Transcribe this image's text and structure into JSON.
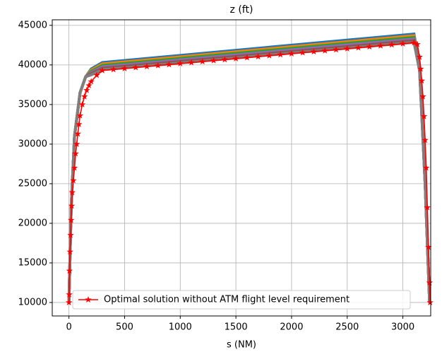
{
  "chart_data": {
    "type": "line",
    "title": "z (ft)",
    "x_label": "s (NM)",
    "xlim": [
      -150,
      3250
    ],
    "ylim": [
      8300,
      45700
    ],
    "xticks": [
      0,
      500,
      1000,
      1500,
      2000,
      2500,
      3000
    ],
    "yticks": [
      10000,
      15000,
      20000,
      25000,
      30000,
      35000,
      40000,
      45000
    ],
    "grid": true,
    "legend": "lower center",
    "series": [
      {
        "color": "#1f77b4",
        "marker": false,
        "x": [
          0,
          20,
          50,
          100,
          150,
          200,
          300,
          1000,
          2000,
          3100,
          3150,
          3200,
          3240
        ],
        "values": [
          10000,
          22000,
          31000,
          36500,
          38500,
          39500,
          40300,
          41200,
          42500,
          43900,
          40000,
          25000,
          10000
        ]
      },
      {
        "color": "#ff7f0e",
        "marker": false,
        "x": [
          0,
          20,
          50,
          100,
          150,
          200,
          300,
          1000,
          2000,
          3100,
          3150,
          3200,
          3240
        ],
        "values": [
          10000,
          22000,
          31000,
          36500,
          38500,
          39350,
          40120,
          41010,
          42300,
          43690,
          39850,
          25000,
          10000
        ]
      },
      {
        "color": "#2ca02c",
        "marker": false,
        "x": [
          0,
          20,
          50,
          100,
          150,
          200,
          300,
          1000,
          2000,
          3100,
          3150,
          3200,
          3240
        ],
        "values": [
          10000,
          22000,
          31000,
          36500,
          38500,
          39200,
          39940,
          40820,
          42100,
          43480,
          39700,
          25000,
          10000
        ]
      },
      {
        "color": "#9467bd",
        "marker": false,
        "x": [
          0,
          20,
          50,
          100,
          150,
          200,
          300,
          1000,
          2000,
          3100,
          3150,
          3200,
          3240
        ],
        "values": [
          10000,
          22000,
          31000,
          36500,
          38500,
          39050,
          39760,
          40630,
          41900,
          43270,
          39550,
          25000,
          10000
        ]
      },
      {
        "color": "#8c564b",
        "marker": false,
        "x": [
          0,
          20,
          50,
          100,
          150,
          200,
          300,
          1000,
          2000,
          3100,
          3150,
          3200,
          3240
        ],
        "values": [
          10000,
          22000,
          31000,
          36500,
          38500,
          38900,
          39580,
          40440,
          41700,
          43060,
          39400,
          25000,
          10000
        ]
      },
      {
        "color": "#7f7f7f",
        "marker": false,
        "x": [
          0,
          20,
          50,
          100,
          150,
          200,
          300,
          1000,
          2000,
          3100,
          3150,
          3200,
          3240
        ],
        "values": [
          10000,
          22000,
          31000,
          36500,
          38500,
          38750,
          39400,
          40250,
          41500,
          42850,
          39250,
          25000,
          10000
        ]
      },
      {
        "name": "Optimal solution without ATM flight level requirement",
        "color": "#ff0000",
        "marker": true,
        "x": [
          0,
          3,
          5,
          10,
          15,
          20,
          25,
          30,
          40,
          50,
          60,
          70,
          80,
          90,
          100,
          120,
          140,
          160,
          180,
          200,
          250,
          300,
          400,
          500,
          600,
          700,
          800,
          900,
          1000,
          1100,
          1200,
          1300,
          1400,
          1500,
          1600,
          1700,
          1800,
          1900,
          2000,
          2100,
          2200,
          2300,
          2400,
          2500,
          2600,
          2700,
          2800,
          2900,
          3000,
          3100,
          3130,
          3150,
          3160,
          3170,
          3180,
          3190,
          3200,
          3210,
          3220,
          3230,
          3240,
          3245
        ],
        "values": [
          10000,
          11000,
          14000,
          16400,
          18500,
          20400,
          22200,
          23900,
          25400,
          27000,
          28800,
          30000,
          31300,
          32500,
          33600,
          35000,
          36000,
          36800,
          37400,
          37900,
          38700,
          39300,
          39425,
          39550,
          39675,
          39800,
          39925,
          40050,
          40175,
          40300,
          40425,
          40550,
          40675,
          40800,
          40925,
          41050,
          41175,
          41300,
          41425,
          41550,
          41675,
          41800,
          41925,
          42050,
          42175,
          42300,
          42425,
          42550,
          42675,
          42800,
          42600,
          41000,
          39500,
          38000,
          36000,
          33500,
          30500,
          27000,
          22000,
          17000,
          12500,
          10000
        ]
      }
    ]
  }
}
